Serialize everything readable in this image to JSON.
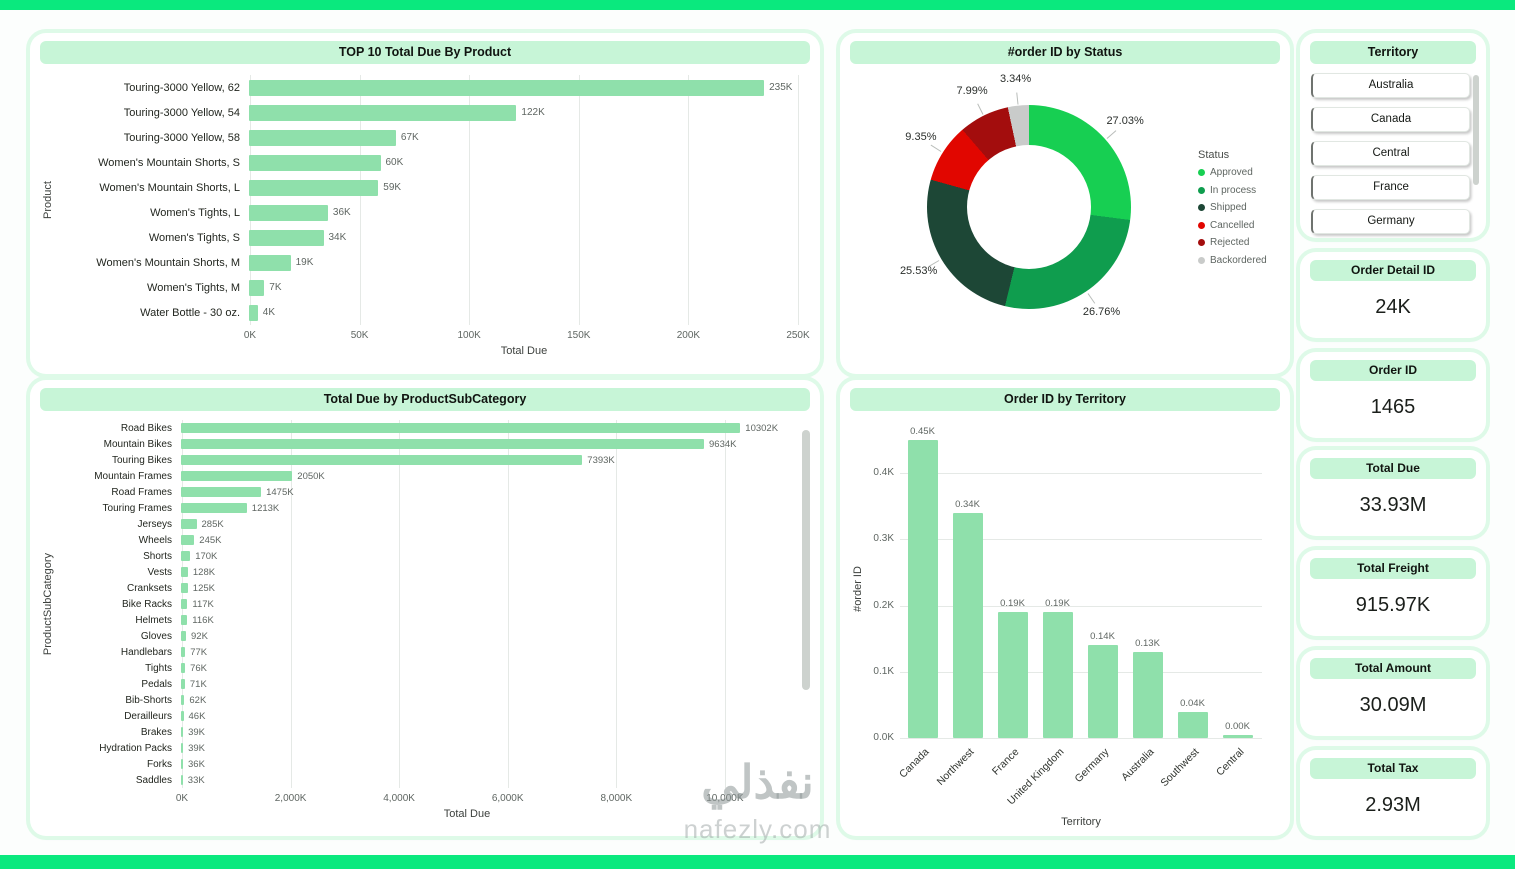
{
  "theme": {
    "accent_green": "#0ae97e",
    "mint_header": "#c7f5d7",
    "bar_green": "#8fe0ab",
    "panel_ring": "#defae8"
  },
  "territory": {
    "title": "Territory",
    "items": [
      "Australia",
      "Canada",
      "Central",
      "France",
      "Germany"
    ]
  },
  "cards": [
    {
      "title": "Order Detail ID",
      "value": "24K"
    },
    {
      "title": "Order ID",
      "value": "1465"
    },
    {
      "title": "Total Due",
      "value": "33.93M"
    },
    {
      "title": "Total Freight",
      "value": "915.97K"
    },
    {
      "title": "Total Amount",
      "value": "30.09M"
    },
    {
      "title": "Total Tax",
      "value": "2.93M"
    }
  ],
  "watermark": {
    "arabic": "نفذلي",
    "domain": "nafezly.com"
  },
  "chart_data": [
    {
      "type": "bar",
      "orientation": "horizontal",
      "title": "TOP 10 Total Due By Product",
      "xlabel": "Total Due",
      "ylabel": "Product",
      "bar_color": "#8fe0ab",
      "categories": [
        "Touring-3000 Yellow, 62",
        "Touring-3000 Yellow, 54",
        "Touring-3000 Yellow, 58",
        "Women's Mountain Shorts, S",
        "Women's Mountain Shorts, L",
        "Women's Tights, L",
        "Women's Tights, S",
        "Women's Mountain Shorts, M",
        "Women's Tights, M",
        "Water Bottle - 30 oz."
      ],
      "values": [
        235,
        122,
        67,
        60,
        59,
        36,
        34,
        19,
        7,
        4
      ],
      "value_labels": [
        "235K",
        "122K",
        "67K",
        "60K",
        "59K",
        "36K",
        "34K",
        "19K",
        "7K",
        "4K"
      ],
      "axis_max": 250,
      "ticks": [
        {
          "v": 0,
          "label": "0K"
        },
        {
          "v": 50,
          "label": "50K"
        },
        {
          "v": 100,
          "label": "100K"
        },
        {
          "v": 150,
          "label": "150K"
        },
        {
          "v": 200,
          "label": "200K"
        },
        {
          "v": 250,
          "label": "250K"
        }
      ]
    },
    {
      "type": "bar",
      "orientation": "horizontal",
      "title": "Total Due by ProductSubCategory",
      "xlabel": "Total Due",
      "ylabel": "ProductSubCategory",
      "bar_color": "#8fe0ab",
      "categories": [
        "Road Bikes",
        "Mountain Bikes",
        "Touring Bikes",
        "Mountain Frames",
        "Road Frames",
        "Touring Frames",
        "Jerseys",
        "Wheels",
        "Shorts",
        "Vests",
        "Cranksets",
        "Bike Racks",
        "Helmets",
        "Gloves",
        "Handlebars",
        "Tights",
        "Pedals",
        "Bib-Shorts",
        "Derailleurs",
        "Brakes",
        "Hydration Packs",
        "Forks",
        "Saddles"
      ],
      "values": [
        10302,
        9634,
        7393,
        2050,
        1475,
        1213,
        285,
        245,
        170,
        128,
        125,
        117,
        116,
        92,
        77,
        76,
        71,
        62,
        46,
        39,
        39,
        36,
        33
      ],
      "value_labels": [
        "10302K",
        "9634K",
        "7393K",
        "2050K",
        "1475K",
        "1213K",
        "285K",
        "245K",
        "170K",
        "128K",
        "125K",
        "117K",
        "116K",
        "92K",
        "77K",
        "76K",
        "71K",
        "62K",
        "46K",
        "39K",
        "39K",
        "36K",
        "33K"
      ],
      "axis_max": 10500,
      "ticks": [
        {
          "v": 0,
          "label": "0K"
        },
        {
          "v": 2000,
          "label": "2,000K"
        },
        {
          "v": 4000,
          "label": "4,000K"
        },
        {
          "v": 6000,
          "label": "6,000K"
        },
        {
          "v": 8000,
          "label": "8,000K"
        },
        {
          "v": 10000,
          "label": "10,000K"
        }
      ]
    },
    {
      "type": "pie",
      "title": "#order ID by Status",
      "legend_title": "Status",
      "slices": [
        {
          "label": "Approved",
          "pct": 27.03,
          "pct_label": "27.03%",
          "color": "#17cf52"
        },
        {
          "label": "In process",
          "pct": 26.76,
          "pct_label": "26.76%",
          "color": "#0f9d4e"
        },
        {
          "label": "Shipped",
          "pct": 25.53,
          "pct_label": "25.53%",
          "color": "#1d4736"
        },
        {
          "label": "Cancelled",
          "pct": 9.35,
          "pct_label": "9.35%",
          "color": "#e10600"
        },
        {
          "label": "Rejected",
          "pct": 7.99,
          "pct_label": "7.99%",
          "color": "#a30d0d"
        },
        {
          "label": "Backordered",
          "pct": 3.34,
          "pct_label": "3.34%",
          "color": "#c9cbca"
        }
      ]
    },
    {
      "type": "bar",
      "orientation": "vertical",
      "title": "Order ID by Territory",
      "xlabel": "Territory",
      "ylabel": "#order ID",
      "bar_color": "#8fe0ab",
      "categories": [
        "Canada",
        "Northwest",
        "France",
        "United Kingdom",
        "Germany",
        "Australia",
        "Southwest",
        "Central"
      ],
      "values": [
        0.45,
        0.34,
        0.19,
        0.19,
        0.14,
        0.13,
        0.04,
        0.004
      ],
      "value_labels": [
        "0.45K",
        "0.34K",
        "0.19K",
        "0.19K",
        "0.14K",
        "0.13K",
        "0.04K",
        "0.00K"
      ],
      "axis_max": 0.45,
      "ticks": [
        {
          "v": 0,
          "label": "0.0K"
        },
        {
          "v": 0.1,
          "label": "0.1K"
        },
        {
          "v": 0.2,
          "label": "0.2K"
        },
        {
          "v": 0.3,
          "label": "0.3K"
        },
        {
          "v": 0.4,
          "label": "0.4K"
        }
      ]
    }
  ]
}
